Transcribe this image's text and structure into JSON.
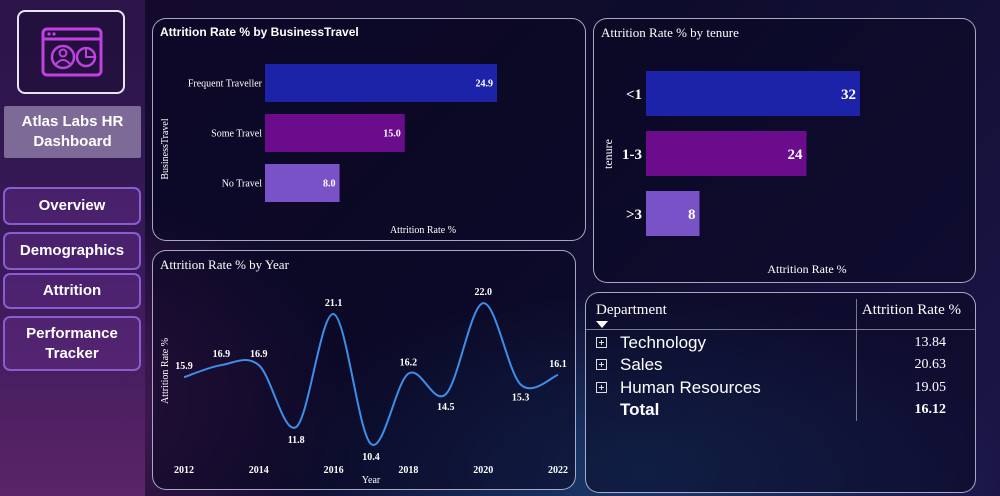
{
  "sidebar": {
    "logo_icon": "dashboard-profile-icon",
    "app_title": "Atlas Labs HR Dashboard",
    "nav": [
      {
        "label": "Overview"
      },
      {
        "label": "Demographics"
      },
      {
        "label": "Attrition"
      },
      {
        "label": "Performance Tracker"
      }
    ]
  },
  "travel_chart": {
    "title": "Attrition Rate % by BusinessTravel",
    "xlabel": "Attrition Rate %",
    "ylabel": "BusinessTravel",
    "chart_data": {
      "type": "bar",
      "categories": [
        "Frequent Traveller",
        "Some Travel",
        "No Travel"
      ],
      "values": [
        24.9,
        15.0,
        8.0
      ],
      "value_labels": [
        "24.9",
        "15.0",
        "8.0"
      ],
      "colors": [
        "#1d23a8",
        "#6a0c8c",
        "#7a52c8"
      ]
    }
  },
  "tenure_chart": {
    "title": "Attrition Rate % by tenure",
    "xlabel": "Attrition Rate %",
    "ylabel": "tenure",
    "chart_data": {
      "type": "bar",
      "categories": [
        "<1",
        "1-3",
        ">3"
      ],
      "values": [
        32,
        24,
        8
      ],
      "value_labels": [
        "32",
        "24",
        "8"
      ],
      "colors": [
        "#1d23a8",
        "#6a0c8c",
        "#7a52c8"
      ]
    }
  },
  "year_chart": {
    "title": "Attrition Rate % by Year",
    "xlabel": "Year",
    "ylabel": "Attrition Rate %",
    "chart_data": {
      "type": "line",
      "x": [
        2012,
        2013,
        2014,
        2015,
        2016,
        2017,
        2018,
        2019,
        2020,
        2021,
        2022
      ],
      "values": [
        15.9,
        16.9,
        16.9,
        11.8,
        21.1,
        10.4,
        16.2,
        14.5,
        22.0,
        15.3,
        16.1
      ],
      "value_labels": [
        "15.9",
        "16.9",
        "16.9",
        "11.8",
        "21.1",
        "10.4",
        "16.2",
        "14.5",
        "22.0",
        "15.3",
        "16.1"
      ],
      "x_ticks": [
        "2012",
        "2014",
        "2016",
        "2018",
        "2020",
        "2022"
      ],
      "color": "#3d8ee8"
    }
  },
  "dept_table": {
    "col_department": "Department",
    "col_rate": "Attrition Rate %",
    "sort_icon": "sort-down-icon",
    "rows": [
      {
        "name": "Technology",
        "value": "13.84"
      },
      {
        "name": "Sales",
        "value": "20.63"
      },
      {
        "name": "Human Resources",
        "value": "19.05"
      }
    ],
    "total_label": "Total",
    "total_value": "16.12"
  }
}
